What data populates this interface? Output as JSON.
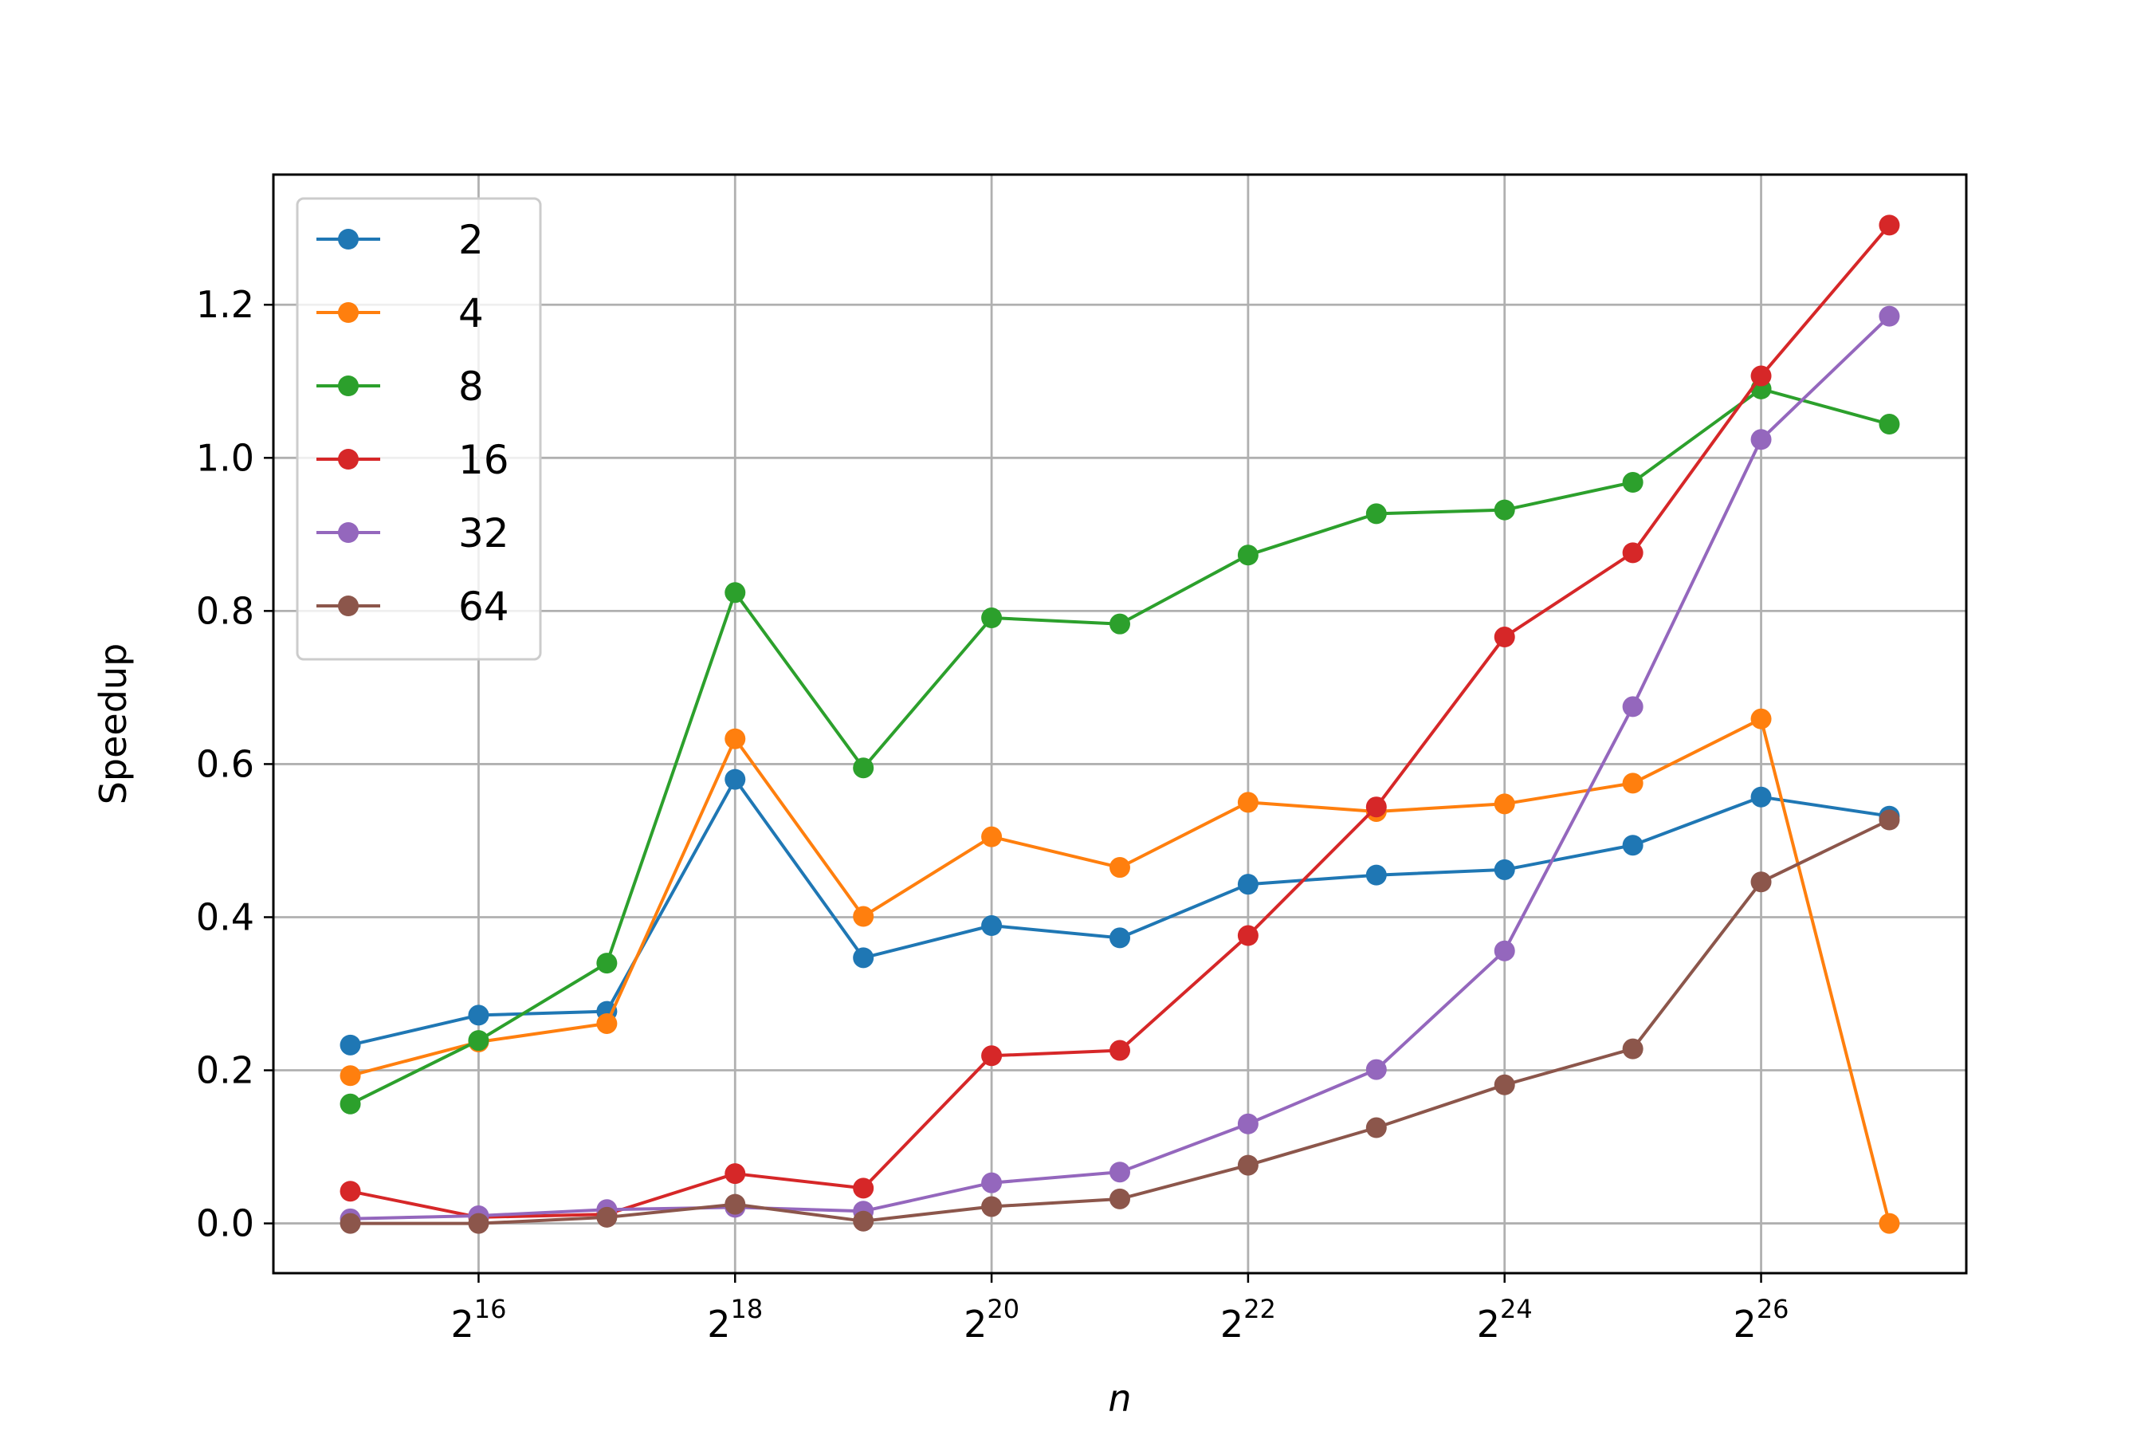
{
  "chart_data": {
    "type": "line",
    "xlabel": "n",
    "ylabel": "Speedup",
    "x_scale": "log2",
    "x": [
      32768,
      65536,
      131072,
      262144,
      524288,
      1048576,
      2097152,
      4194304,
      8388608,
      16777216,
      33554432,
      67108864,
      134217728
    ],
    "x_ticks": [
      {
        "value": 65536,
        "base": "2",
        "exp": "16"
      },
      {
        "value": 262144,
        "base": "2",
        "exp": "18"
      },
      {
        "value": 1048576,
        "base": "2",
        "exp": "20"
      },
      {
        "value": 4194304,
        "base": "2",
        "exp": "22"
      },
      {
        "value": 16777216,
        "base": "2",
        "exp": "24"
      },
      {
        "value": 67108864,
        "base": "2",
        "exp": "26"
      }
    ],
    "y_ticks": [
      "0.0",
      "0.2",
      "0.4",
      "0.6",
      "0.8",
      "1.0",
      "1.2"
    ],
    "ylim": [
      -0.065,
      1.37
    ],
    "grid": true,
    "legend_position": "top-left",
    "series": [
      {
        "name": "2",
        "color": "#1f77b4",
        "values": [
          0.233,
          0.272,
          0.277,
          0.58,
          0.347,
          0.389,
          0.373,
          0.443,
          0.455,
          0.462,
          0.494,
          0.557,
          0.532
        ]
      },
      {
        "name": "4",
        "color": "#ff7f0e",
        "values": [
          0.193,
          0.237,
          0.261,
          0.633,
          0.401,
          0.505,
          0.465,
          0.55,
          0.538,
          0.548,
          0.575,
          0.659,
          0.0
        ]
      },
      {
        "name": "8",
        "color": "#2ca02c",
        "values": [
          0.156,
          0.239,
          0.34,
          0.824,
          0.595,
          0.791,
          0.783,
          0.873,
          0.927,
          0.932,
          0.968,
          1.09,
          1.044
        ]
      },
      {
        "name": "16",
        "color": "#d62728",
        "values": [
          0.042,
          0.008,
          0.012,
          0.065,
          0.046,
          0.219,
          0.226,
          0.376,
          0.544,
          0.766,
          0.876,
          1.107,
          1.304
        ]
      },
      {
        "name": "32",
        "color": "#9467bd",
        "values": [
          0.006,
          0.01,
          0.018,
          0.021,
          0.016,
          0.053,
          0.067,
          0.13,
          0.201,
          0.356,
          0.675,
          1.024,
          1.185
        ]
      },
      {
        "name": "64",
        "color": "#8c564b",
        "values": [
          0.0,
          0.0,
          0.008,
          0.025,
          0.003,
          0.022,
          0.032,
          0.076,
          0.125,
          0.181,
          0.228,
          0.446,
          0.527
        ]
      }
    ]
  }
}
